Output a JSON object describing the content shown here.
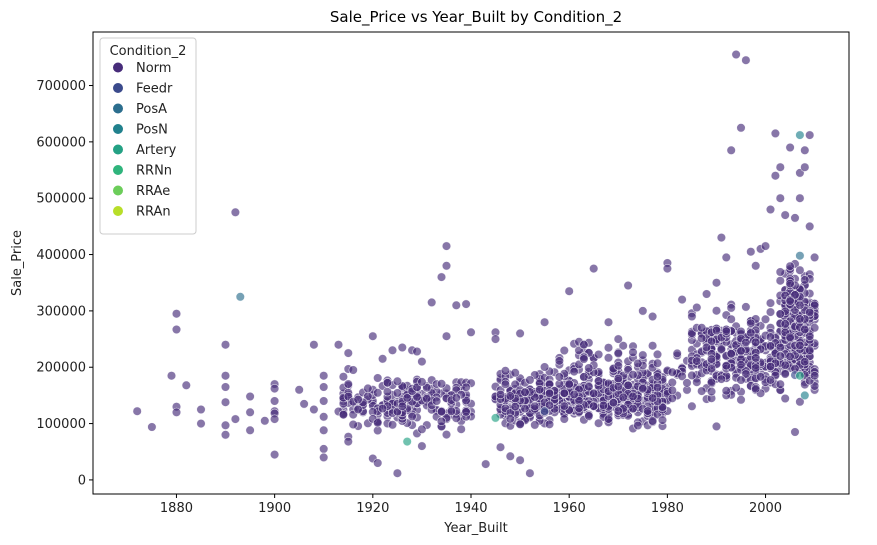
{
  "chart_data": {
    "type": "scatter",
    "title": "Sale_Price vs Year_Built by Condition_2",
    "xlabel": "Year_Built",
    "ylabel": "Sale_Price",
    "xlim": [
      1863,
      2017
    ],
    "ylim": [
      -25000,
      795000
    ],
    "xticks": [
      1880,
      1900,
      1920,
      1940,
      1960,
      1980,
      2000
    ],
    "yticks": [
      0,
      100000,
      200000,
      300000,
      400000,
      500000,
      600000,
      700000
    ],
    "legend": {
      "title": "Condition_2",
      "placement": "top-left",
      "entries": [
        {
          "name": "Norm",
          "color": "#472c7a"
        },
        {
          "name": "Feedr",
          "color": "#3b4a8c"
        },
        {
          "name": "PosA",
          "color": "#2c6e8e"
        },
        {
          "name": "PosN",
          "color": "#21818d"
        },
        {
          "name": "Artery",
          "color": "#24a184"
        },
        {
          "name": "RRNn",
          "color": "#2fb47c"
        },
        {
          "name": "RRAe",
          "color": "#6ccd5a"
        },
        {
          "name": "RRAn",
          "color": "#b8de29"
        }
      ]
    },
    "series": [
      {
        "name": "Norm",
        "color": "#472c7a",
        "points": [
          [
            1872,
            122000
          ],
          [
            1875,
            94000
          ],
          [
            1879,
            185000
          ],
          [
            1880,
            130000
          ],
          [
            1880,
            120000
          ],
          [
            1880,
            295000
          ],
          [
            1880,
            267000
          ],
          [
            1882,
            168000
          ],
          [
            1885,
            100000
          ],
          [
            1885,
            125000
          ],
          [
            1890,
            240000
          ],
          [
            1890,
            185000
          ],
          [
            1890,
            165000
          ],
          [
            1890,
            138000
          ],
          [
            1890,
            97000
          ],
          [
            1890,
            80000
          ],
          [
            1892,
            475000
          ],
          [
            1892,
            108000
          ],
          [
            1895,
            148000
          ],
          [
            1895,
            120000
          ],
          [
            1895,
            88000
          ],
          [
            1898,
            105000
          ],
          [
            1900,
            170000
          ],
          [
            1900,
            162000
          ],
          [
            1900,
            140000
          ],
          [
            1900,
            122000
          ],
          [
            1900,
            118000
          ],
          [
            1900,
            108000
          ],
          [
            1900,
            45000
          ],
          [
            1905,
            160000
          ],
          [
            1906,
            135000
          ],
          [
            1908,
            240000
          ],
          [
            1908,
            125000
          ],
          [
            1910,
            185000
          ],
          [
            1910,
            165000
          ],
          [
            1910,
            140000
          ],
          [
            1910,
            112000
          ],
          [
            1910,
            88000
          ],
          [
            1910,
            55000
          ],
          [
            1910,
            40000
          ],
          [
            1913,
            240000
          ],
          [
            1915,
            225000
          ],
          [
            1916,
            195000
          ],
          [
            1920,
            255000
          ],
          [
            1922,
            215000
          ],
          [
            1924,
            230000
          ],
          [
            1925,
            175000
          ],
          [
            1926,
            235000
          ],
          [
            1928,
            230000
          ],
          [
            1929,
            228000
          ],
          [
            1930,
            210000
          ],
          [
            1930,
            60000
          ],
          [
            1932,
            315000
          ],
          [
            1934,
            360000
          ],
          [
            1935,
            415000
          ],
          [
            1935,
            380000
          ],
          [
            1935,
            255000
          ],
          [
            1937,
            310000
          ],
          [
            1939,
            312000
          ],
          [
            1940,
            262000
          ],
          [
            1945,
            262000
          ],
          [
            1945,
            250000
          ],
          [
            1946,
            58000
          ],
          [
            1948,
            42000
          ],
          [
            1950,
            260000
          ],
          [
            1950,
            35000
          ],
          [
            1952,
            12000
          ],
          [
            1955,
            280000
          ],
          [
            1960,
            335000
          ],
          [
            1963,
            240000
          ],
          [
            1965,
            375000
          ],
          [
            1968,
            280000
          ],
          [
            1970,
            250000
          ],
          [
            1972,
            345000
          ],
          [
            1975,
            300000
          ],
          [
            1977,
            290000
          ],
          [
            1980,
            385000
          ],
          [
            1980,
            375000
          ],
          [
            1983,
            320000
          ],
          [
            1985,
            290000
          ],
          [
            1988,
            330000
          ],
          [
            1990,
            350000
          ],
          [
            1990,
            95000
          ],
          [
            1991,
            430000
          ],
          [
            1992,
            395000
          ],
          [
            1993,
            585000
          ],
          [
            1994,
            755000
          ],
          [
            1995,
            625000
          ],
          [
            1996,
            745000
          ],
          [
            1997,
            405000
          ],
          [
            1998,
            380000
          ],
          [
            1999,
            410000
          ],
          [
            2000,
            415000
          ],
          [
            2001,
            480000
          ],
          [
            2002,
            540000
          ],
          [
            2002,
            615000
          ],
          [
            2003,
            555000
          ],
          [
            2003,
            500000
          ],
          [
            2004,
            470000
          ],
          [
            2005,
            590000
          ],
          [
            2006,
            465000
          ],
          [
            2006,
            85000
          ],
          [
            2007,
            545000
          ],
          [
            2007,
            500000
          ],
          [
            2008,
            585000
          ],
          [
            2008,
            555000
          ],
          [
            2009,
            612000
          ],
          [
            2009,
            450000
          ],
          [
            2010,
            395000
          ],
          [
            2010,
            270000
          ],
          [
            2010,
            185000
          ],
          [
            1925,
            12000
          ],
          [
            1920,
            38000
          ],
          [
            1943,
            28000
          ],
          [
            1915,
            68000
          ],
          [
            1921,
            30000
          ]
        ]
      },
      {
        "name": "Feedr",
        "color": "#3b4a8c",
        "points": [
          [
            1955,
            122000
          ],
          [
            2006,
            186000
          ]
        ]
      },
      {
        "name": "PosA",
        "color": "#2c6e8e",
        "points": [
          [
            1893,
            325000
          ],
          [
            2007,
            398000
          ]
        ]
      },
      {
        "name": "PosN",
        "color": "#21818d",
        "points": [
          [
            2007,
            612000
          ],
          [
            2008,
            150000
          ]
        ]
      },
      {
        "name": "Artery",
        "color": "#24a184",
        "points": [
          [
            1927,
            68000
          ],
          [
            1945,
            110000
          ],
          [
            2007,
            185000
          ]
        ]
      },
      {
        "name": "RRNn",
        "color": "#2fb47c",
        "points": []
      },
      {
        "name": "RRAe",
        "color": "#6ccd5a",
        "points": []
      },
      {
        "name": "RRAn",
        "color": "#b8de29",
        "points": []
      }
    ],
    "clusters": [
      {
        "series": "Norm",
        "xmin": 1913,
        "xmax": 1940,
        "ymin": 70000,
        "ymax": 200000,
        "count": 220,
        "seed": 11
      },
      {
        "series": "Norm",
        "xmin": 1945,
        "xmax": 1980,
        "ymin": 80000,
        "ymax": 210000,
        "count": 520,
        "seed": 23
      },
      {
        "series": "Norm",
        "xmin": 1955,
        "xmax": 1985,
        "ymin": 110000,
        "ymax": 270000,
        "count": 120,
        "seed": 31
      },
      {
        "series": "Norm",
        "xmin": 1985,
        "xmax": 2010,
        "ymin": 120000,
        "ymax": 330000,
        "count": 420,
        "seed": 47
      },
      {
        "series": "Norm",
        "xmin": 2003,
        "xmax": 2010,
        "ymin": 200000,
        "ymax": 420000,
        "count": 140,
        "seed": 59
      }
    ]
  }
}
